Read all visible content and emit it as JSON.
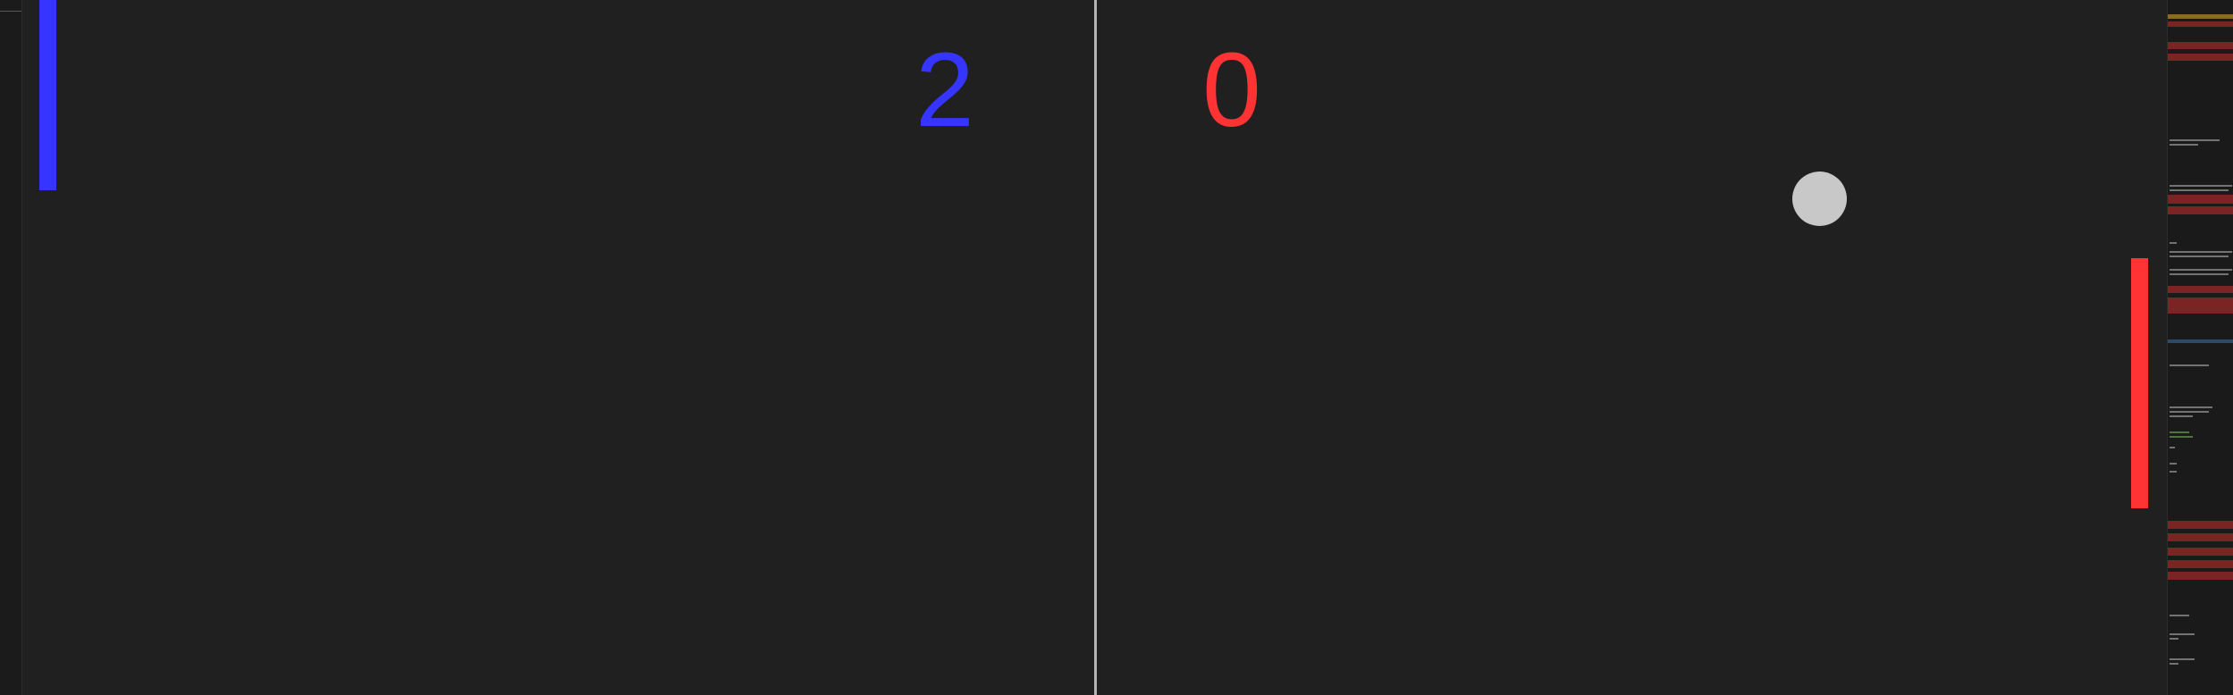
{
  "scores": {
    "left": "2",
    "right": "0"
  },
  "colors": {
    "background": "#202020",
    "net": "#b4b4b4",
    "left_player": "#3535ff",
    "right_player": "#ff3333",
    "ball": "#c8c8c8",
    "minimap_error": "#7a2424",
    "minimap_warning": "#8a6a2a",
    "minimap_info": "#2e4a6a"
  }
}
